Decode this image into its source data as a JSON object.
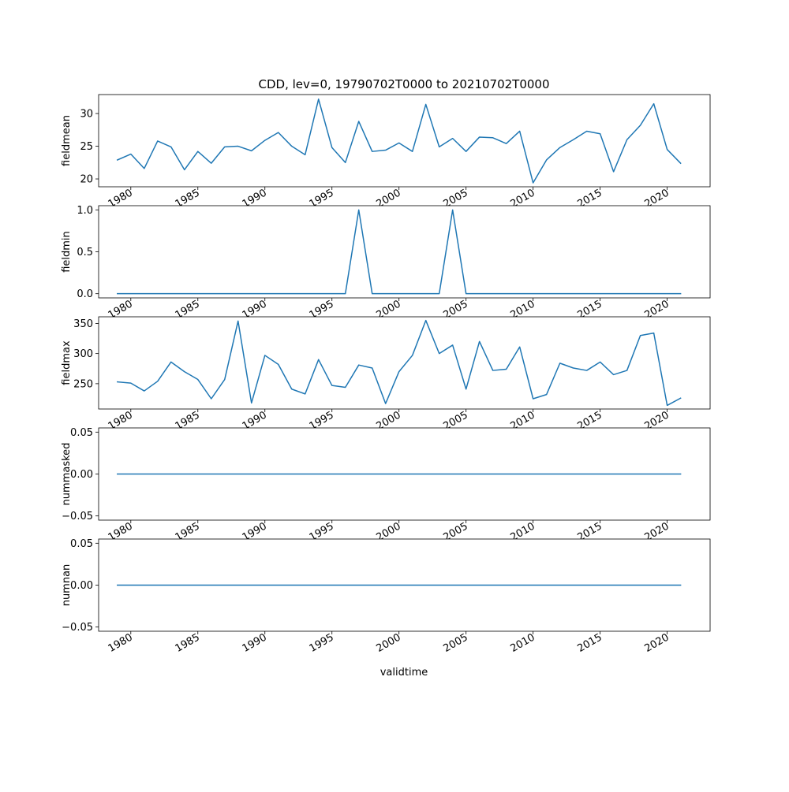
{
  "title": "CDD, lev=0, 19790702T0000 to 20210702T0000",
  "xlabel": "validtime",
  "x_tick_labels": [
    "1980",
    "1985",
    "1990",
    "1995",
    "2000",
    "2005",
    "2010",
    "2015",
    "2020"
  ],
  "line_color": "#1f77b4",
  "chart_data": [
    {
      "type": "line",
      "ylabel": "fieldmean",
      "x": [
        1979,
        1980,
        1981,
        1982,
        1983,
        1984,
        1985,
        1986,
        1987,
        1988,
        1989,
        1990,
        1991,
        1992,
        1993,
        1994,
        1995,
        1996,
        1997,
        1998,
        1999,
        2000,
        2001,
        2002,
        2003,
        2004,
        2005,
        2006,
        2007,
        2008,
        2009,
        2010,
        2011,
        2012,
        2013,
        2014,
        2015,
        2016,
        2017,
        2018,
        2019,
        2020,
        2021
      ],
      "values": [
        22.9,
        23.8,
        21.6,
        25.8,
        24.9,
        21.4,
        24.2,
        22.4,
        24.9,
        25.0,
        24.3,
        25.9,
        27.1,
        25.0,
        23.7,
        32.2,
        24.8,
        22.5,
        28.8,
        24.2,
        24.4,
        25.5,
        24.2,
        31.4,
        24.9,
        26.2,
        24.2,
        26.4,
        26.3,
        25.4,
        27.3,
        19.4,
        22.9,
        24.8,
        26.0,
        27.3,
        26.9,
        21.1,
        26.0,
        28.2,
        31.5,
        24.5,
        22.4
      ],
      "xlim": [
        1977.6,
        2023.2
      ],
      "ylim": [
        18.8,
        32.9
      ],
      "y_ticks": [
        {
          "v": 20,
          "label": "20"
        },
        {
          "v": 25,
          "label": "25"
        },
        {
          "v": 30,
          "label": "30"
        }
      ]
    },
    {
      "type": "line",
      "ylabel": "fieldmin",
      "x": [
        1979,
        1980,
        1981,
        1982,
        1983,
        1984,
        1985,
        1986,
        1987,
        1988,
        1989,
        1990,
        1991,
        1992,
        1993,
        1994,
        1995,
        1996,
        1997,
        1998,
        1999,
        2000,
        2001,
        2002,
        2003,
        2004,
        2005,
        2006,
        2007,
        2008,
        2009,
        2010,
        2011,
        2012,
        2013,
        2014,
        2015,
        2016,
        2017,
        2018,
        2019,
        2020,
        2021
      ],
      "values": [
        0,
        0,
        0,
        0,
        0,
        0,
        0,
        0,
        0,
        0,
        0,
        0,
        0,
        0,
        0,
        0,
        0,
        0,
        1,
        0,
        0,
        0,
        0,
        0,
        0,
        1,
        0,
        0,
        0,
        0,
        0,
        0,
        0,
        0,
        0,
        0,
        0,
        0,
        0,
        0,
        0,
        0,
        0
      ],
      "xlim": [
        1977.6,
        2023.2
      ],
      "ylim": [
        -0.05,
        1.05
      ],
      "y_ticks": [
        {
          "v": 0,
          "label": "0.0"
        },
        {
          "v": 0.5,
          "label": "0.5"
        },
        {
          "v": 1,
          "label": "1.0"
        }
      ]
    },
    {
      "type": "line",
      "ylabel": "fieldmax",
      "x": [
        1979,
        1980,
        1981,
        1982,
        1983,
        1984,
        1985,
        1986,
        1987,
        1988,
        1989,
        1990,
        1991,
        1992,
        1993,
        1994,
        1995,
        1996,
        1997,
        1998,
        1999,
        2000,
        2001,
        2002,
        2003,
        2004,
        2005,
        2006,
        2007,
        2008,
        2009,
        2010,
        2011,
        2012,
        2013,
        2014,
        2015,
        2016,
        2017,
        2018,
        2019,
        2020,
        2021
      ],
      "values": [
        253,
        251,
        238,
        254,
        286,
        270,
        257,
        225,
        257,
        354,
        218,
        297,
        282,
        241,
        233,
        290,
        247,
        244,
        281,
        276,
        217,
        270,
        297,
        355,
        300,
        314,
        241,
        320,
        272,
        274,
        311,
        225,
        232,
        284,
        276,
        272,
        286,
        265,
        272,
        330,
        334,
        214,
        226
      ],
      "xlim": [
        1977.6,
        2023.2
      ],
      "ylim": [
        208,
        361
      ],
      "y_ticks": [
        {
          "v": 250,
          "label": "250"
        },
        {
          "v": 300,
          "label": "300"
        },
        {
          "v": 350,
          "label": "350"
        }
      ]
    },
    {
      "type": "line",
      "ylabel": "nummasked",
      "x": [
        1979,
        2021
      ],
      "values": [
        0,
        0
      ],
      "xlim": [
        1977.6,
        2023.2
      ],
      "ylim": [
        -0.055,
        0.055
      ],
      "y_ticks": [
        {
          "v": -0.05,
          "label": "−0.05"
        },
        {
          "v": 0,
          "label": "0.00"
        },
        {
          "v": 0.05,
          "label": "0.05"
        }
      ]
    },
    {
      "type": "line",
      "ylabel": "numnan",
      "x": [
        1979,
        2021
      ],
      "values": [
        0,
        0
      ],
      "xlim": [
        1977.6,
        2023.2
      ],
      "ylim": [
        -0.055,
        0.055
      ],
      "y_ticks": [
        {
          "v": -0.05,
          "label": "−0.05"
        },
        {
          "v": 0,
          "label": "0.00"
        },
        {
          "v": 0.05,
          "label": "0.05"
        }
      ]
    }
  ]
}
